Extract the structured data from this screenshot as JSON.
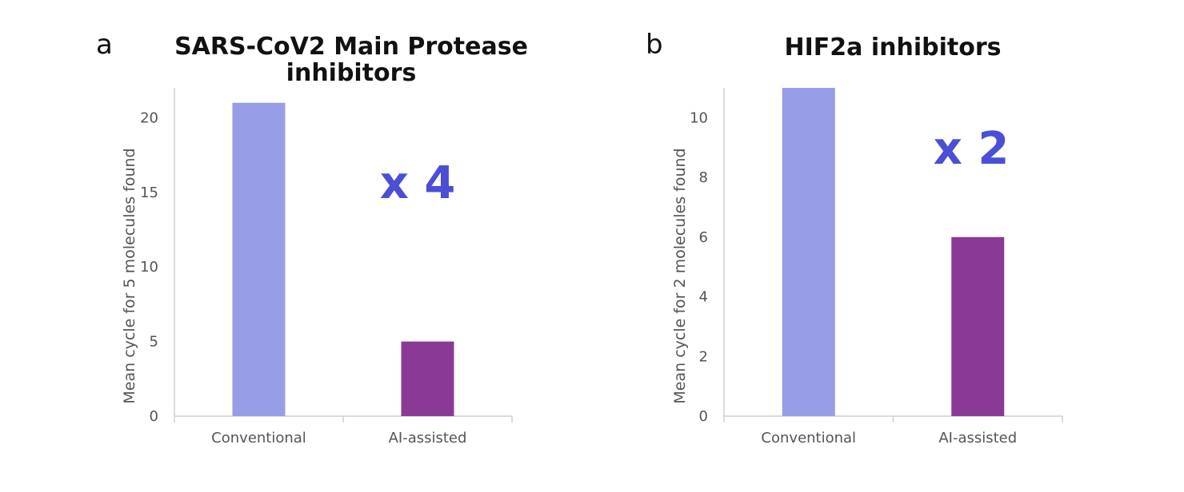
{
  "chart_data": [
    {
      "panel": "a",
      "type": "bar",
      "title_lines": [
        "SARS-CoV2 Main Protease",
        "inhibitors"
      ],
      "xlabel": "",
      "ylabel": "Mean cycle for 5 molecules found",
      "categories": [
        "Conventional",
        "AI-assisted"
      ],
      "values": [
        21,
        5
      ],
      "bar_colors": [
        "#979de6",
        "#8a3a96"
      ],
      "ylim": [
        0,
        22
      ],
      "yticks": [
        0,
        5,
        10,
        15,
        20
      ],
      "annotation": "x 4",
      "annotation_color": "#4a4fd6"
    },
    {
      "panel": "b",
      "type": "bar",
      "title_lines": [
        "HIF2a inhibitors"
      ],
      "xlabel": "",
      "ylabel": "Mean cycle for 2 molecules found",
      "categories": [
        "Conventional",
        "AI-assisted"
      ],
      "values": [
        11,
        6
      ],
      "bar_colors": [
        "#979de6",
        "#8a3a96"
      ],
      "ylim": [
        0,
        11
      ],
      "yticks": [
        0,
        2,
        4,
        6,
        8,
        10
      ],
      "annotation": "x 2",
      "annotation_color": "#4a4fd6"
    }
  ]
}
